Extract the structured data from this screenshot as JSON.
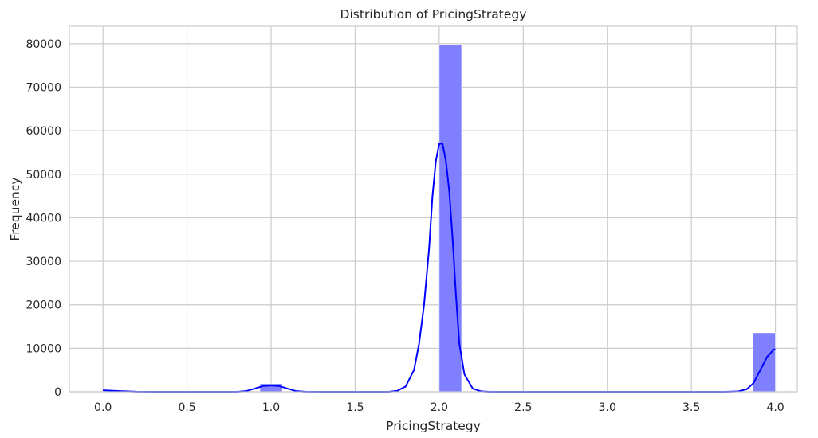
{
  "chart_data": {
    "type": "bar",
    "title": "Distribution of PricingStrategy",
    "xlabel": "PricingStrategy",
    "ylabel": "Frequency",
    "xlim": [
      -0.2,
      4.13
    ],
    "ylim": [
      0,
      84000
    ],
    "xticks": [
      "0.0",
      "0.5",
      "1.0",
      "1.5",
      "2.0",
      "2.5",
      "3.0",
      "3.5",
      "4.0"
    ],
    "yticks": [
      "0",
      "10000",
      "20000",
      "30000",
      "40000",
      "50000",
      "60000",
      "70000",
      "80000"
    ],
    "grid": true,
    "bins": [
      {
        "x0": 0.0,
        "x1": 0.1333,
        "count": 18
      },
      {
        "x0": 0.9333,
        "x1": 1.0667,
        "count": 1867
      },
      {
        "x0": 2.0,
        "x1": 2.1333,
        "count": 79848
      },
      {
        "x0": 3.8667,
        "x1": 4.0,
        "count": 13562
      }
    ],
    "kde": {
      "x": [
        0.0,
        0.1,
        0.2,
        0.3,
        0.8,
        0.85,
        0.9,
        0.95,
        1.0,
        1.05,
        1.1,
        1.15,
        1.2,
        1.3,
        1.7,
        1.75,
        1.8,
        1.85,
        1.88,
        1.91,
        1.94,
        1.96,
        1.98,
        2.0,
        2.02,
        2.04,
        2.06,
        2.08,
        2.1,
        2.12,
        2.15,
        2.2,
        2.25,
        2.3,
        3.7,
        3.78,
        3.83,
        3.87,
        3.91,
        3.95,
        3.99,
        4.0
      ],
      "y": [
        350,
        150,
        30,
        0,
        0,
        150,
        700,
        1300,
        1450,
        1300,
        700,
        150,
        30,
        0,
        0,
        200,
        1200,
        5000,
        11000,
        20000,
        33000,
        45000,
        53000,
        57000,
        57000,
        53000,
        46000,
        35000,
        22000,
        11000,
        4000,
        700,
        100,
        0,
        0,
        100,
        600,
        2000,
        5000,
        8000,
        9700,
        9800
      ]
    },
    "colors": {
      "bar_fill": "#8080ff",
      "kde_line": "#0000ff",
      "grid": "#cccccc",
      "axes_edge": "#cccccc",
      "text": "#262626"
    }
  }
}
